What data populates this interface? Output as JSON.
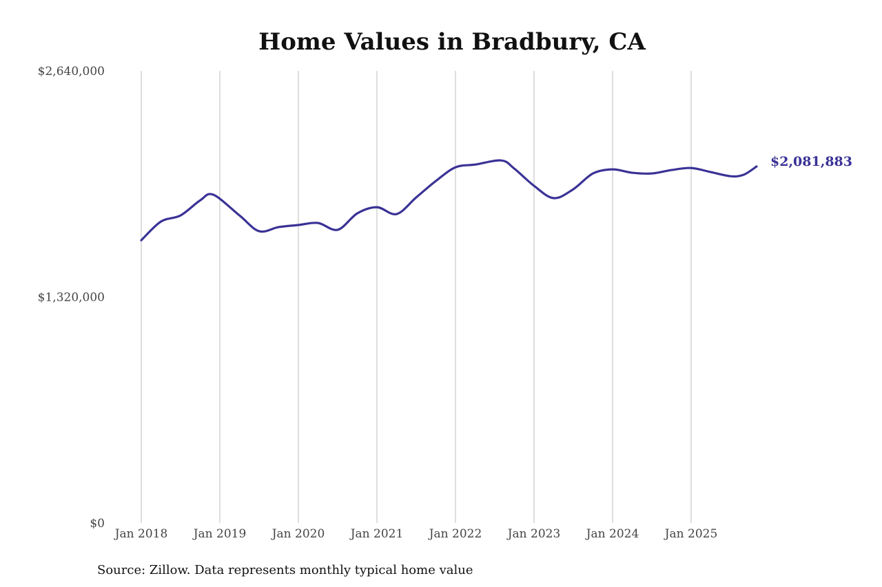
{
  "chart_data": {
    "type": "line",
    "title": "Home Values in Bradbury, CA",
    "source": "Source: Zillow. Data represents monthly typical home value",
    "ylim": [
      0,
      2640000
    ],
    "yticks": [
      0,
      1320000,
      2640000
    ],
    "ytick_labels": [
      "$0",
      "$1,320,000",
      "$2,640,000"
    ],
    "xticks": [
      "2018-01",
      "2019-01",
      "2020-01",
      "2021-01",
      "2022-01",
      "2023-01",
      "2024-01",
      "2025-01"
    ],
    "xtick_labels": [
      "Jan 2018",
      "Jan 2019",
      "Jan 2020",
      "Jan 2021",
      "Jan 2022",
      "Jan 2023",
      "Jan 2024",
      "Jan 2025"
    ],
    "xlim": [
      "2018-01",
      "2025-11"
    ],
    "grid": "vertical",
    "line_color": "#3a3296",
    "end_label": "$2,081,883",
    "series": [
      {
        "x": [
          "2018-01",
          "2018-04",
          "2018-07",
          "2018-10",
          "2018-12",
          "2019-04",
          "2019-07",
          "2019-10",
          "2020-01",
          "2020-04",
          "2020-07",
          "2020-10",
          "2021-01",
          "2021-04",
          "2021-07",
          "2021-10",
          "2022-01",
          "2022-04",
          "2022-08",
          "2022-10",
          "2023-01",
          "2023-04",
          "2023-07",
          "2023-10",
          "2024-01",
          "2024-04",
          "2024-07",
          "2024-10",
          "2025-01",
          "2025-04",
          "2025-07",
          "2025-09",
          "2025-11"
        ],
        "values": [
          1651000,
          1760000,
          1796000,
          1884000,
          1917000,
          1796000,
          1704000,
          1728000,
          1740000,
          1752000,
          1712000,
          1808000,
          1844000,
          1804000,
          1901000,
          1997000,
          2077000,
          2093000,
          2117000,
          2069000,
          1969000,
          1897000,
          1949000,
          2041000,
          2065000,
          2045000,
          2041000,
          2061000,
          2073000,
          2049000,
          2025000,
          2033000,
          2081883
        ]
      }
    ]
  }
}
